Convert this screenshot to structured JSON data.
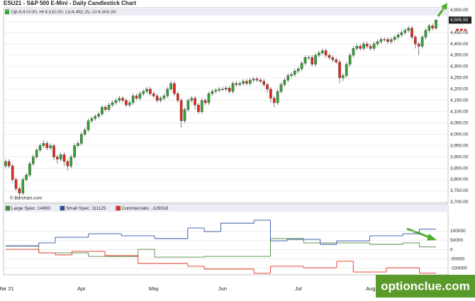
{
  "chart_data": [
    {
      "type": "candlestick",
      "title": "ESU21 - S&P 500 E-Mini - Daily Candlestick Chart",
      "ohlc_label": "Op:4,470.00, Hi:4,510.00, Lo:4,462.25, Cl:4,505.50",
      "source": "© Barchart.com",
      "last_price": {
        "value": 4505.5,
        "label": "4,505.50"
      },
      "up_color": "#33a532",
      "down_color": "#e8281e",
      "categories": [
        "Mar 21",
        null,
        null,
        null,
        null,
        null,
        null,
        null,
        null,
        null,
        null,
        null,
        null,
        null,
        null,
        null,
        null,
        null,
        null,
        null,
        null,
        null,
        "Apr",
        null,
        null,
        null,
        null,
        null,
        null,
        null,
        null,
        null,
        null,
        null,
        null,
        null,
        null,
        null,
        null,
        null,
        null,
        null,
        null,
        "May",
        null,
        null,
        null,
        null,
        null,
        null,
        null,
        null,
        null,
        null,
        null,
        null,
        null,
        null,
        null,
        null,
        null,
        null,
        null,
        "Jun",
        null,
        null,
        null,
        null,
        null,
        null,
        null,
        null,
        null,
        null,
        null,
        null,
        null,
        null,
        null,
        null,
        null,
        null,
        null,
        null,
        null,
        "Jul",
        null,
        null,
        null,
        null,
        null,
        null,
        null,
        null,
        null,
        null,
        null,
        null,
        null,
        null,
        null,
        null,
        null,
        null,
        null,
        null,
        "Aug",
        null,
        null,
        null,
        null,
        null,
        null,
        null,
        null,
        null,
        null,
        null,
        null,
        null,
        null,
        null,
        null,
        null,
        null,
        null
      ],
      "open": [
        3860,
        3880,
        3860,
        3800,
        3760,
        3740,
        3800,
        3820,
        3870,
        3900,
        3930,
        3950,
        3960,
        3940,
        3950,
        3900,
        3890,
        3910,
        3880,
        3860,
        3900,
        3950,
        3960,
        4000,
        4020,
        4060,
        4070,
        4080,
        4090,
        4120,
        4110,
        4130,
        4140,
        4150,
        4160,
        4150,
        4130,
        4140,
        4170,
        4160,
        4180,
        4190,
        4200,
        4180,
        4170,
        4150,
        4160,
        4170,
        4200,
        4225,
        4180,
        4150,
        4060,
        4110,
        4150,
        4160,
        4130,
        4100,
        4150,
        4140,
        4180,
        4190,
        4195,
        4200,
        4200,
        4205,
        4190,
        4225,
        4220,
        4225,
        4235,
        4225,
        4240,
        4245,
        4240,
        4235,
        4220,
        4200,
        4160,
        4140,
        4190,
        4220,
        4240,
        4260,
        4265,
        4280,
        4290,
        4315,
        4340,
        4340,
        4310,
        4350,
        4360,
        4370,
        4350,
        4340,
        4330,
        4320,
        4250,
        4260,
        4310,
        4350,
        4380,
        4390,
        4380,
        4400,
        4390,
        4380,
        4400,
        4410,
        4420,
        4420,
        4410,
        4420,
        4430,
        4440,
        4450,
        4460,
        4470,
        4430,
        4400,
        4390,
        4430,
        4460,
        4480,
        4470
      ],
      "high": [
        3890,
        3890,
        3870,
        3810,
        3770,
        3810,
        3830,
        3880,
        3910,
        3940,
        3960,
        3975,
        3970,
        3960,
        3960,
        3910,
        3920,
        3920,
        3890,
        3910,
        3960,
        3970,
        4010,
        4030,
        4070,
        4080,
        4090,
        4100,
        4130,
        4130,
        4140,
        4150,
        4160,
        4170,
        4170,
        4160,
        4150,
        4180,
        4180,
        4190,
        4200,
        4210,
        4210,
        4190,
        4180,
        4170,
        4180,
        4210,
        4235,
        4235,
        4190,
        4160,
        4120,
        4160,
        4170,
        4170,
        4140,
        4160,
        4160,
        4190,
        4200,
        4205,
        4210,
        4210,
        4215,
        4215,
        4235,
        4235,
        4235,
        4245,
        4245,
        4250,
        4255,
        4255,
        4250,
        4245,
        4230,
        4210,
        4170,
        4200,
        4230,
        4250,
        4270,
        4275,
        4290,
        4300,
        4325,
        4350,
        4350,
        4350,
        4360,
        4370,
        4380,
        4380,
        4360,
        4350,
        4340,
        4330,
        4270,
        4320,
        4360,
        4390,
        4400,
        4400,
        4410,
        4410,
        4400,
        4410,
        4420,
        4430,
        4430,
        4430,
        4430,
        4440,
        4450,
        4460,
        4470,
        4480,
        4480,
        4440,
        4410,
        4440,
        4470,
        4490,
        4490,
        4510
      ],
      "low": [
        3850,
        3850,
        3790,
        3750,
        3723,
        3730,
        3790,
        3810,
        3860,
        3890,
        3920,
        3940,
        3930,
        3930,
        3885,
        3870,
        3880,
        3860,
        3840,
        3850,
        3890,
        3940,
        3950,
        3990,
        4010,
        4050,
        4060,
        4070,
        4080,
        4100,
        4100,
        4120,
        4130,
        4140,
        4140,
        4120,
        4120,
        4130,
        4150,
        4150,
        4170,
        4180,
        4170,
        4160,
        4140,
        4140,
        4150,
        4160,
        4190,
        4170,
        4140,
        4030,
        4050,
        4100,
        4140,
        4110,
        4090,
        4090,
        4130,
        4130,
        4170,
        4180,
        4185,
        4190,
        4190,
        4180,
        4180,
        4210,
        4210,
        4215,
        4215,
        4215,
        4230,
        4230,
        4225,
        4210,
        4185,
        4140,
        4120,
        4130,
        4180,
        4210,
        4230,
        4250,
        4255,
        4270,
        4280,
        4305,
        4330,
        4300,
        4300,
        4340,
        4350,
        4340,
        4330,
        4320,
        4310,
        4225,
        4235,
        4250,
        4300,
        4340,
        4370,
        4370,
        4370,
        4380,
        4370,
        4370,
        4390,
        4400,
        4410,
        4400,
        4400,
        4410,
        4420,
        4430,
        4440,
        4450,
        4420,
        4380,
        4350,
        4380,
        4420,
        4450,
        4460,
        4462.25
      ],
      "close": [
        3880,
        3860,
        3800,
        3760,
        3740,
        3800,
        3820,
        3870,
        3900,
        3930,
        3950,
        3960,
        3940,
        3950,
        3900,
        3890,
        3910,
        3880,
        3860,
        3900,
        3950,
        3960,
        4000,
        4020,
        4060,
        4070,
        4080,
        4090,
        4120,
        4110,
        4130,
        4140,
        4150,
        4160,
        4150,
        4130,
        4140,
        4170,
        4160,
        4180,
        4190,
        4200,
        4180,
        4170,
        4150,
        4160,
        4170,
        4200,
        4225,
        4180,
        4150,
        4060,
        4110,
        4150,
        4160,
        4130,
        4100,
        4150,
        4140,
        4180,
        4190,
        4195,
        4200,
        4200,
        4205,
        4190,
        4225,
        4220,
        4225,
        4235,
        4225,
        4240,
        4245,
        4240,
        4235,
        4220,
        4200,
        4160,
        4140,
        4190,
        4220,
        4240,
        4260,
        4265,
        4280,
        4290,
        4315,
        4340,
        4340,
        4310,
        4350,
        4360,
        4370,
        4350,
        4340,
        4330,
        4320,
        4250,
        4260,
        4310,
        4350,
        4380,
        4390,
        4380,
        4400,
        4390,
        4380,
        4400,
        4410,
        4420,
        4420,
        4410,
        4420,
        4430,
        4440,
        4450,
        4460,
        4470,
        4430,
        4400,
        4390,
        4430,
        4460,
        4480,
        4470,
        4505.5
      ],
      "ylim": [
        3695,
        4560
      ],
      "yticks": [
        {
          "value": 3700,
          "label": "3,700.00"
        },
        {
          "value": 3750,
          "label": "3,750.00"
        },
        {
          "value": 3800,
          "label": "3,800.00"
        },
        {
          "value": 3850,
          "label": "3,850.00"
        },
        {
          "value": 3900,
          "label": "3,900.00"
        },
        {
          "value": 3950,
          "label": "3,950.00"
        },
        {
          "value": 4000,
          "label": "4,000.00"
        },
        {
          "value": 4050,
          "label": "4,050.00"
        },
        {
          "value": 4100,
          "label": "4,100.00"
        },
        {
          "value": 4150,
          "label": "4,150.00"
        },
        {
          "value": 4200,
          "label": "4,200.00"
        },
        {
          "value": 4250,
          "label": "4,250.00"
        },
        {
          "value": 4300,
          "label": "4,300.00"
        },
        {
          "value": 4350,
          "label": "4,350.00"
        },
        {
          "value": 4400,
          "label": "4,400.00"
        },
        {
          "value": 4450,
          "label": "4,450.00"
        },
        {
          "value": 4500,
          "label": "4,500.00"
        },
        {
          "value": 4550,
          "label": "4,550.00"
        }
      ],
      "grid": true
    },
    {
      "type": "step",
      "categories": [
        null,
        null,
        null,
        null,
        null,
        null,
        null,
        null,
        null,
        null,
        null,
        null,
        null,
        null,
        null,
        null,
        null,
        null,
        null,
        null,
        null,
        null,
        null,
        null,
        null,
        null
      ],
      "series": [
        {
          "name": "Large Spec: 14893",
          "color": "#4e8a3e",
          "values": [
            21000,
            21000,
            -17000,
            -17000,
            -17000,
            -36000,
            -36000,
            -36000,
            2000,
            -40000,
            -40000,
            -40000,
            -36000,
            -36000,
            -36000,
            -36000,
            60000,
            60000,
            37000,
            37000,
            37000,
            37000,
            29000,
            29000,
            37000,
            14893
          ]
        },
        {
          "name": "Small Spec: 111125",
          "color": "#2e4fa8",
          "values": [
            20000,
            20000,
            37000,
            67000,
            67000,
            86000,
            86000,
            75000,
            75000,
            60000,
            60000,
            117000,
            98000,
            143000,
            143000,
            159000,
            48000,
            56000,
            56000,
            29000,
            48000,
            48000,
            75000,
            75000,
            86000,
            111125
          ]
        },
        {
          "name": "Commercials: -126018",
          "color": "#e0331f",
          "values": [
            2000,
            2000,
            -17000,
            -28000,
            -9000,
            -9000,
            -32000,
            -32000,
            -74000,
            -74000,
            -74000,
            -89000,
            -104000,
            -104000,
            -104000,
            -127000,
            -89000,
            -89000,
            -97000,
            -97000,
            -62000,
            -120000,
            -120000,
            -97000,
            -97000,
            -126018
          ]
        }
      ],
      "ylim": [
        -135000,
        235000
      ],
      "yticks": [
        -100000,
        -50000,
        0,
        50000,
        100000
      ],
      "grid": true
    }
  ],
  "watermark": "optionclue.com"
}
